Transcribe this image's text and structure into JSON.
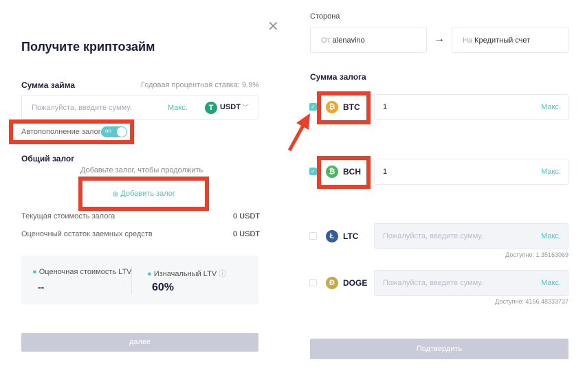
{
  "left": {
    "title": "Получите криптозайм",
    "loan_label": "Сумма займа",
    "rate_label": "Годовая процентная ставка:",
    "rate_value": "9.9%",
    "amount_placeholder": "Пожалуйста, введите сумму.",
    "max": "Макс.",
    "currency": "USDT",
    "auto_label": "Автопополнение залога",
    "toggle": "on",
    "collateral_title": "Общий залог",
    "collateral_hint": "Добавьте залог, чтобы продолжить",
    "add_collateral": "Добавить залог",
    "current_value_label": "Текущая стоимость залога",
    "current_value": "0 USDT",
    "remaining_label": "Оценочный остаток заемных средств",
    "remaining_value": "0 USDT",
    "ltv_est_label": "Оценочная стоимость LTV",
    "ltv_est_value": "--",
    "ltv_init_label": "Изначальный LTV",
    "ltv_init_value": "60%",
    "next": "далее"
  },
  "right": {
    "side_label": "Сторона",
    "from_prefix": "От",
    "from_value": "alenavino",
    "to_prefix": "На",
    "to_value": "Кредитный счет",
    "collateral_title": "Сумма залога",
    "coins": [
      {
        "symbol": "BTC",
        "checked": true,
        "value": "1",
        "placeholder": "",
        "max": "Макс.",
        "available": "",
        "color": "#f0a32f",
        "glyph": "₿"
      },
      {
        "symbol": "BCH",
        "checked": true,
        "value": "1",
        "placeholder": "",
        "max": "Макс.",
        "available": "",
        "color": "#4cb560",
        "glyph": "₿"
      },
      {
        "symbol": "LTC",
        "checked": false,
        "value": "",
        "placeholder": "Пожалуйста, введите сумму.",
        "max": "Макс.",
        "available": "Доступно: 1.35163069",
        "color": "#345d9d",
        "glyph": "Ł"
      },
      {
        "symbol": "DOGE",
        "checked": false,
        "value": "",
        "placeholder": "Пожалуйста, введите сумму.",
        "max": "Макс.",
        "available": "Доступно: 4156.48333737",
        "color": "#c8a94a",
        "glyph": "Ð"
      }
    ],
    "confirm": "Подтвердить"
  },
  "colors": {
    "accent": "#4fc3c3",
    "highlight": "#e8402a"
  }
}
